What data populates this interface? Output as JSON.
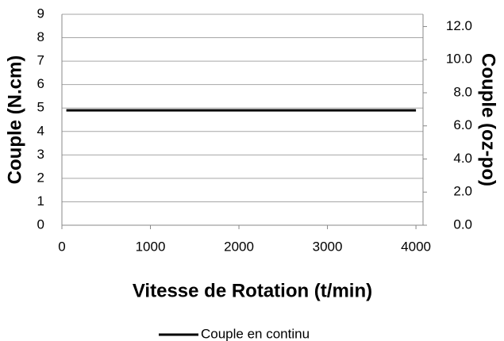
{
  "chart_data": {
    "type": "line",
    "x": [
      50,
      4000
    ],
    "series": [
      {
        "name": "Couple en continu",
        "color": "#000000",
        "values": [
          4.9,
          4.9
        ]
      }
    ],
    "xlabel": "Vitesse de Rotation (t/min)",
    "ylabel": "Couple (N.cm)",
    "y2label": "Couple (oz-po)",
    "xlim": [
      0,
      4080
    ],
    "xticks": [
      0,
      1000,
      2000,
      3000,
      4000
    ],
    "ylim": [
      0,
      9
    ],
    "yticks": [
      0,
      1,
      2,
      3,
      4,
      5,
      6,
      7,
      8,
      9
    ],
    "y2lim": [
      0,
      12.74
    ],
    "y2ticks": [
      {
        "value": 0,
        "label": "0.0"
      },
      {
        "value": 2,
        "label": "2.0"
      },
      {
        "value": 4,
        "label": "4.0"
      },
      {
        "value": 6,
        "label": "6.0"
      },
      {
        "value": 8,
        "label": "8.0"
      },
      {
        "value": 10,
        "label": "10.0"
      },
      {
        "value": 12,
        "label": "12.0"
      }
    ],
    "grid": true,
    "legend": "bottom"
  }
}
